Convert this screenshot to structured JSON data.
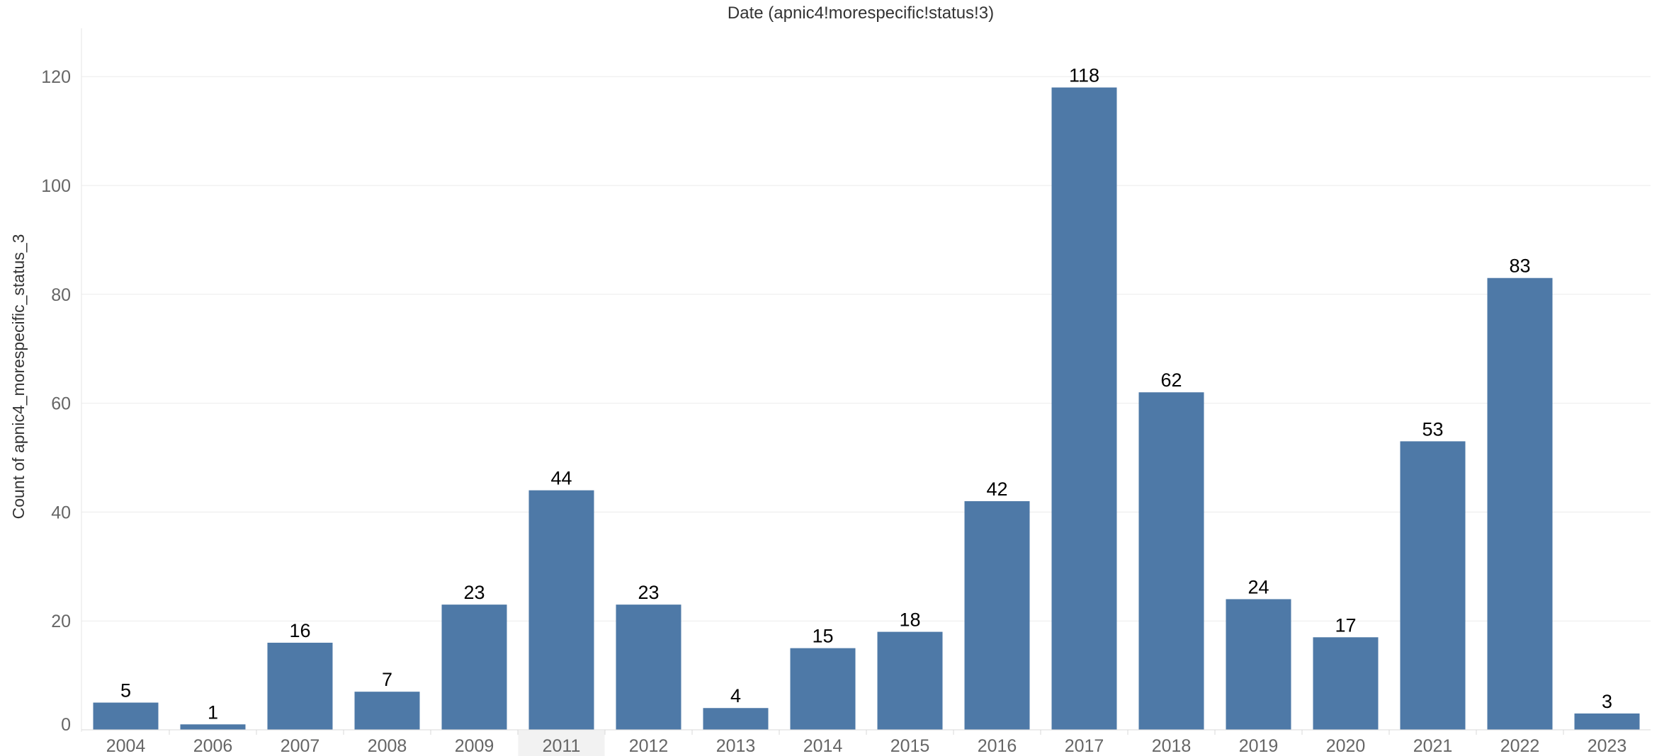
{
  "chart_data": {
    "type": "bar",
    "title": "Date (apnic4!morespecific!status!3)",
    "xlabel": "",
    "ylabel": "Count of apnic4_morespecific_status_3",
    "categories": [
      "2004",
      "2006",
      "2007",
      "2008",
      "2009",
      "2011",
      "2012",
      "2013",
      "2014",
      "2015",
      "2016",
      "2017",
      "2018",
      "2019",
      "2020",
      "2021",
      "2022",
      "2023"
    ],
    "values": [
      5,
      1,
      16,
      7,
      23,
      44,
      23,
      4,
      15,
      18,
      42,
      118,
      62,
      24,
      17,
      53,
      83,
      3
    ],
    "ylim": [
      0,
      120
    ],
    "yticks": [
      0,
      20,
      40,
      60,
      80,
      100,
      120
    ],
    "data_labels": true,
    "grid": true,
    "legend": "none",
    "highlighted_category": "2011",
    "colors": {
      "bar": "#4e79a7",
      "highlight_band": "#f2f2f2",
      "gridline": "#ebebeb",
      "tick_text": "#666666",
      "label_text": "#000000",
      "title_text": "#333333"
    }
  }
}
